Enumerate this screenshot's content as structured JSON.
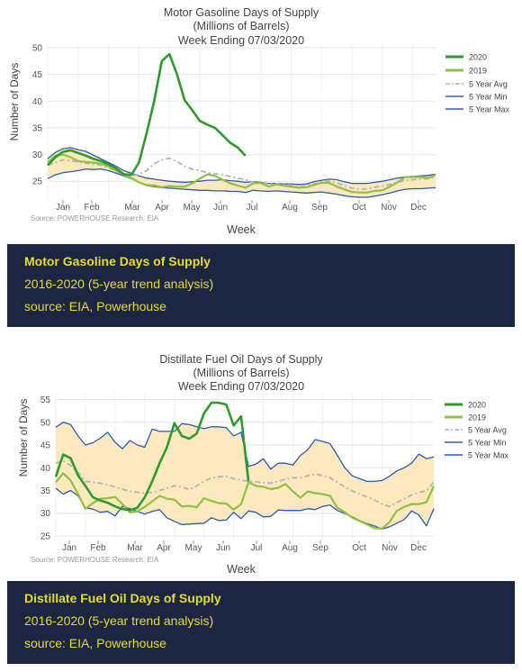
{
  "charts": [
    {
      "title_lines": [
        "Motor Gasoline Days of Supply",
        "(Millions of Barrels)",
        "Week Ending 07/03/2020"
      ],
      "ylabel": "Number of Days",
      "xlabel": "Week",
      "source": "Source: POWERHOUSE Research, EIA",
      "month_labels": [
        "Jan",
        "Feb",
        "Mar",
        "Apr",
        "May",
        "Jun",
        "Jul",
        "Aug",
        "Sep",
        "Oct",
        "Nov",
        "Dec"
      ],
      "yticks": [
        25,
        30,
        35,
        40,
        45,
        50
      ],
      "legend": [
        "2020",
        "2019",
        "5 Year Avg",
        "5 Year Min",
        "5 Year Max"
      ]
    },
    {
      "title_lines": [
        "Distillate Fuel Oil Days of Supply",
        "(Millions of Barrels)",
        "Week Ending 07/03/2020"
      ],
      "ylabel": "Number of Days",
      "xlabel": "Week",
      "source": "Source: POWERHOUSE Research, EIA",
      "month_labels": [
        "Jan",
        "Feb",
        "Mar",
        "Apr",
        "May",
        "Jun",
        "Jul",
        "Aug",
        "Sep",
        "Oct",
        "Nov",
        "Dec"
      ],
      "yticks": [
        25,
        30,
        35,
        40,
        45,
        50,
        55
      ],
      "legend": [
        "2020",
        "2019",
        "5 Year Avg",
        "5 Year Min",
        "5 Year Max"
      ]
    }
  ],
  "captions": [
    {
      "title": "Motor Gasoline Days of Supply",
      "line1": "2016-2020 (5-year trend analysis)",
      "line2": "source: EIA, Powerhouse"
    },
    {
      "title": "Distillate Fuel Oil Days of Supply",
      "line1": "2016-2020 (5-year trend analysis)",
      "line2": "source: EIA, Powerhouse"
    }
  ],
  "chart_data": [
    {
      "type": "line",
      "title": "Motor Gasoline Days of Supply (Millions of Barrels) Week Ending 07/03/2020",
      "xlabel": "Week",
      "ylabel": "Number of Days",
      "ylim": [
        21.5,
        51
      ],
      "xlim": [
        1,
        52
      ],
      "series": [
        {
          "name": "2020",
          "color": "#2e9a2e",
          "dash": "solid",
          "x": [
            1,
            2,
            3,
            4,
            5,
            6,
            7,
            8,
            9,
            10,
            11,
            12,
            13,
            14,
            15,
            16,
            17,
            18,
            19,
            20,
            21,
            22,
            23,
            24,
            25,
            26,
            27
          ],
          "y": [
            28.0,
            29.5,
            30.5,
            30.8,
            30.3,
            29.8,
            29.2,
            28.8,
            28.2,
            27.4,
            26.3,
            26.2,
            28.5,
            34.0,
            40.0,
            47.5,
            48.8,
            45.0,
            40.2,
            38.3,
            36.3,
            35.6,
            35.0,
            33.6,
            32.2,
            31.3,
            29.8
          ]
        },
        {
          "name": "2019",
          "color": "#8dc044",
          "dash": "solid",
          "x": [
            1,
            2,
            3,
            4,
            5,
            6,
            7,
            8,
            9,
            10,
            11,
            12,
            13,
            14,
            15,
            16,
            17,
            18,
            19,
            20,
            21,
            22,
            23,
            24,
            25,
            26,
            27,
            28,
            29,
            30,
            31,
            32,
            33,
            34,
            35,
            36,
            37,
            38,
            39,
            40,
            41,
            42,
            43,
            44,
            45,
            46,
            47,
            48,
            49,
            50,
            51,
            52
          ],
          "y": [
            28.5,
            29.8,
            30.0,
            29.5,
            28.8,
            28.6,
            28.5,
            28.3,
            27.8,
            27.0,
            26.2,
            25.6,
            24.8,
            24.3,
            24.2,
            23.9,
            24.1,
            24.0,
            24.0,
            24.6,
            25.5,
            26.3,
            26.0,
            25.3,
            24.6,
            24.2,
            23.8,
            24.6,
            24.7,
            24.0,
            24.4,
            24.2,
            24.0,
            23.8,
            23.9,
            24.3,
            24.7,
            24.7,
            24.0,
            23.5,
            23.0,
            22.9,
            22.9,
            23.2,
            23.3,
            24.0,
            24.8,
            25.8,
            25.8,
            25.8,
            25.6,
            26.2
          ]
        },
        {
          "name": "5 Year Avg",
          "color": "#b3b3b3",
          "dash": "dashdot",
          "x": [
            1,
            2,
            3,
            4,
            5,
            6,
            7,
            8,
            9,
            10,
            11,
            12,
            13,
            14,
            15,
            16,
            17,
            18,
            19,
            20,
            21,
            22,
            23,
            24,
            25,
            26,
            27,
            28,
            29,
            30,
            31,
            32,
            33,
            34,
            35,
            36,
            37,
            38,
            39,
            40,
            41,
            42,
            43,
            44,
            45,
            46,
            47,
            48,
            49,
            50,
            51,
            52
          ],
          "y": [
            28.0,
            28.5,
            29.0,
            28.9,
            28.6,
            28.4,
            28.2,
            28.0,
            27.5,
            27.0,
            26.4,
            26.0,
            26.3,
            27.0,
            28.3,
            29.0,
            29.3,
            28.7,
            27.8,
            27.3,
            27.0,
            26.6,
            26.4,
            26.2,
            25.9,
            25.6,
            25.3,
            24.8,
            24.7,
            24.5,
            24.6,
            24.4,
            24.3,
            24.2,
            24.3,
            24.5,
            24.9,
            25.0,
            24.7,
            24.2,
            23.7,
            23.5,
            23.6,
            23.9,
            24.1,
            24.4,
            24.8,
            25.2,
            25.3,
            25.4,
            25.5,
            25.8
          ]
        },
        {
          "name": "5 Year Min",
          "color": "#2b59b5",
          "dash": "solid",
          "x": [
            1,
            2,
            3,
            4,
            5,
            6,
            7,
            8,
            9,
            10,
            11,
            12,
            13,
            14,
            15,
            16,
            17,
            18,
            19,
            20,
            21,
            22,
            23,
            24,
            25,
            26,
            27,
            28,
            29,
            30,
            31,
            32,
            33,
            34,
            35,
            36,
            37,
            38,
            39,
            40,
            41,
            42,
            43,
            44,
            45,
            46,
            47,
            48,
            49,
            50,
            51,
            52
          ],
          "y": [
            25.5,
            26.2,
            26.6,
            26.8,
            27.0,
            27.3,
            27.2,
            27.3,
            27.0,
            26.5,
            26.0,
            25.5,
            24.8,
            24.2,
            24.0,
            23.8,
            23.7,
            23.6,
            23.5,
            23.4,
            23.3,
            23.3,
            23.2,
            23.2,
            23.1,
            23.1,
            22.9,
            23.3,
            23.2,
            23.1,
            23.2,
            23.1,
            23.0,
            22.9,
            22.8,
            22.9,
            23.0,
            22.8,
            22.6,
            22.3,
            22.1,
            22.0,
            22.0,
            22.2,
            22.5,
            22.8,
            23.2,
            23.5,
            23.6,
            23.6,
            23.7,
            23.8
          ]
        },
        {
          "name": "5 Year Max",
          "color": "#2b59b5",
          "dash": "solid",
          "x": [
            1,
            2,
            3,
            4,
            5,
            6,
            7,
            8,
            9,
            10,
            11,
            12,
            13,
            14,
            15,
            16,
            17,
            18,
            19,
            20,
            21,
            22,
            23,
            24,
            25,
            26,
            27,
            28,
            29,
            30,
            31,
            32,
            33,
            34,
            35,
            36,
            37,
            38,
            39,
            40,
            41,
            42,
            43,
            44,
            45,
            46,
            47,
            48,
            49,
            50,
            51,
            52
          ],
          "y": [
            29.2,
            30.4,
            31.1,
            31.3,
            30.9,
            30.6,
            29.9,
            29.2,
            28.5,
            27.8,
            27.0,
            26.5,
            26.0,
            25.6,
            25.4,
            25.2,
            25.0,
            24.9,
            24.8,
            24.9,
            25.0,
            25.2,
            25.2,
            25.3,
            25.1,
            25.0,
            24.8,
            24.9,
            24.8,
            24.6,
            24.6,
            24.5,
            24.5,
            24.4,
            24.5,
            24.9,
            25.2,
            25.4,
            25.3,
            24.9,
            24.6,
            24.6,
            24.6,
            24.8,
            25.0,
            25.3,
            25.6,
            25.8,
            25.9,
            26.0,
            26.1,
            26.3
          ]
        }
      ]
    },
    {
      "type": "line",
      "title": "Distillate Fuel Oil Days of Supply (Millions of Barrels) Week Ending 07/03/2020",
      "xlabel": "Week",
      "ylabel": "Number of Days",
      "ylim": [
        24,
        56.3
      ],
      "xlim": [
        1,
        52
      ],
      "series": [
        {
          "name": "2020",
          "color": "#2e9a2e",
          "dash": "solid",
          "x": [
            1,
            2,
            3,
            4,
            5,
            6,
            7,
            8,
            9,
            10,
            11,
            12,
            13,
            14,
            15,
            16,
            17,
            18,
            19,
            20,
            21,
            22,
            23,
            24,
            25,
            26,
            27
          ],
          "y": [
            38.0,
            42.9,
            42.1,
            38.3,
            36.0,
            33.5,
            32.8,
            32.3,
            31.5,
            30.9,
            30.7,
            31.2,
            33.5,
            37.0,
            41.0,
            44.5,
            49.8,
            47.0,
            46.4,
            47.5,
            52.0,
            54.3,
            54.3,
            53.9,
            49.3,
            51.3,
            37.0
          ]
        },
        {
          "name": "2019",
          "color": "#8dc044",
          "dash": "solid",
          "x": [
            1,
            2,
            3,
            4,
            5,
            6,
            7,
            8,
            9,
            10,
            11,
            12,
            13,
            14,
            15,
            16,
            17,
            18,
            19,
            20,
            21,
            22,
            23,
            24,
            25,
            26,
            27,
            28,
            29,
            30,
            31,
            32,
            33,
            34,
            35,
            36,
            37,
            38,
            39,
            40,
            41,
            42,
            43,
            44,
            45,
            46,
            47,
            48,
            49,
            50,
            51,
            52
          ],
          "y": [
            36.8,
            38.8,
            37.2,
            34.2,
            31.0,
            32.2,
            33.2,
            33.3,
            33.6,
            32.0,
            30.2,
            30.4,
            31.4,
            32.6,
            33.8,
            33.2,
            33.0,
            31.5,
            31.6,
            31.3,
            33.3,
            32.7,
            32.2,
            32.1,
            30.8,
            32.0,
            36.8,
            36.0,
            35.8,
            35.3,
            35.6,
            36.4,
            34.8,
            33.4,
            34.8,
            34.4,
            34.2,
            33.8,
            31.2,
            30.2,
            29.0,
            28.3,
            27.5,
            26.7,
            26.6,
            28.0,
            30.5,
            31.4,
            32.0,
            32.0,
            32.4,
            36.0
          ]
        },
        {
          "name": "5 Year Avg",
          "color": "#b3b3b3",
          "dash": "dashdot",
          "x": [
            1,
            2,
            3,
            4,
            5,
            6,
            7,
            8,
            9,
            10,
            11,
            12,
            13,
            14,
            15,
            16,
            17,
            18,
            19,
            20,
            21,
            22,
            23,
            24,
            25,
            26,
            27,
            28,
            29,
            30,
            31,
            32,
            33,
            34,
            35,
            36,
            37,
            38,
            39,
            40,
            41,
            42,
            43,
            44,
            45,
            46,
            47,
            48,
            49,
            50,
            51,
            52
          ],
          "y": [
            41.0,
            41.5,
            40.5,
            39.0,
            37.0,
            36.8,
            36.6,
            36.2,
            35.8,
            35.3,
            34.8,
            34.6,
            34.4,
            34.6,
            35.0,
            35.5,
            36.0,
            35.8,
            35.2,
            36.0,
            37.0,
            37.8,
            38.0,
            38.1,
            37.6,
            37.3,
            37.0,
            36.9,
            36.7,
            36.6,
            37.0,
            37.5,
            37.8,
            37.8,
            38.2,
            38.6,
            38.3,
            37.8,
            36.8,
            35.8,
            34.9,
            34.2,
            33.6,
            32.9,
            32.0,
            31.5,
            32.3,
            33.2,
            34.0,
            34.6,
            34.9,
            36.8
          ]
        },
        {
          "name": "5 Year Min",
          "color": "#2b59b5",
          "dash": "solid",
          "x": [
            1,
            2,
            3,
            4,
            5,
            6,
            7,
            8,
            9,
            10,
            11,
            12,
            13,
            14,
            15,
            16,
            17,
            18,
            19,
            20,
            21,
            22,
            23,
            24,
            25,
            26,
            27,
            28,
            29,
            30,
            31,
            32,
            33,
            34,
            35,
            36,
            37,
            38,
            39,
            40,
            41,
            42,
            43,
            44,
            45,
            46,
            47,
            48,
            49,
            50,
            51,
            52
          ],
          "y": [
            35.5,
            34.2,
            35.0,
            33.8,
            31.2,
            30.9,
            30.2,
            30.4,
            29.4,
            31.5,
            31.0,
            30.4,
            29.8,
            30.4,
            30.8,
            29.0,
            28.2,
            27.5,
            27.6,
            27.7,
            27.8,
            29.0,
            28.4,
            28.5,
            30.2,
            28.8,
            30.5,
            30.2,
            29.2,
            29.3,
            30.7,
            30.6,
            30.6,
            30.6,
            31.0,
            30.8,
            31.5,
            31.8,
            30.6,
            29.9,
            29.2,
            28.4,
            27.7,
            27.2,
            26.5,
            27.0,
            27.8,
            28.6,
            30.5,
            29.6,
            27.2,
            31.0
          ]
        },
        {
          "name": "5 Year Max",
          "color": "#2b59b5",
          "dash": "solid",
          "x": [
            1,
            2,
            3,
            4,
            5,
            6,
            7,
            8,
            9,
            10,
            11,
            12,
            13,
            14,
            15,
            16,
            17,
            18,
            19,
            20,
            21,
            22,
            23,
            24,
            25,
            26,
            27,
            28,
            29,
            30,
            31,
            32,
            33,
            34,
            35,
            36,
            37,
            38,
            39,
            40,
            41,
            42,
            43,
            44,
            45,
            46,
            47,
            48,
            49,
            50,
            51,
            52
          ],
          "y": [
            48.9,
            50.0,
            49.5,
            47.0,
            45.0,
            45.5,
            46.5,
            47.8,
            45.6,
            44.2,
            46.0,
            45.0,
            44.5,
            48.5,
            48.0,
            48.0,
            48.0,
            49.7,
            49.5,
            49.0,
            48.6,
            49.0,
            49.0,
            48.8,
            47.0,
            47.8,
            40.3,
            40.8,
            42.0,
            39.7,
            41.0,
            41.0,
            40.6,
            42.7,
            44.0,
            46.2,
            45.8,
            45.3,
            42.7,
            40.0,
            38.2,
            37.6,
            37.0,
            37.0,
            37.2,
            38.1,
            39.3,
            40.0,
            41.0,
            43.0,
            42.0,
            42.4
          ]
        }
      ]
    }
  ]
}
